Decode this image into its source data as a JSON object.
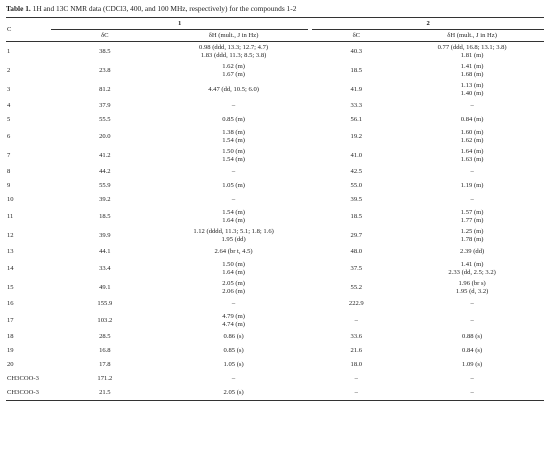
{
  "caption": {
    "label": "Table 1.",
    "text": "1H and 13C NMR data (CDCl3, 400, and 100 MHz, respectively) for the compounds 1-2"
  },
  "headers": {
    "c": "C",
    "compound1": "1",
    "compound2": "2",
    "delta_c": "δC",
    "delta_h": "δH (mult., J in Hz)"
  },
  "rows": [
    {
      "c": "1",
      "c1": "38.5",
      "h1": [
        "0.98 (ddd, 13.3; 12.7; 4.7)",
        "1.83 (ddd, 11.3; 8.5; 3.8)"
      ],
      "c2": "40.3",
      "h2": [
        "0.77 (ddd, 16.8; 13.1; 3.8)",
        "1.81 (m)"
      ]
    },
    {
      "c": "2",
      "c1": "23.8",
      "h1": [
        "1.62 (m)",
        "1.67 (m)"
      ],
      "c2": "18.5",
      "h2": [
        "1.41 (m)",
        "1.68 (m)"
      ]
    },
    {
      "c": "3",
      "c1": "81.2",
      "h1": [
        "4.47 (dd, 10.5; 6.0)"
      ],
      "c2": "41.9",
      "h2": [
        "1.13 (m)",
        "1.40 (m)"
      ]
    },
    {
      "c": "4",
      "c1": "37.9",
      "h1": [
        "–"
      ],
      "c2": "33.3",
      "h2": [
        "–"
      ]
    },
    {
      "c": "5",
      "c1": "55.5",
      "h1": [
        "0.85 (m)"
      ],
      "c2": "56.1",
      "h2": [
        "0.84 (m)"
      ]
    },
    {
      "c": "6",
      "c1": "20.0",
      "h1": [
        "1.38 (m)",
        "1.54 (m)"
      ],
      "c2": "19.2",
      "h2": [
        "1.60 (m)",
        "1.62 (m)"
      ]
    },
    {
      "c": "7",
      "c1": "41.2",
      "h1": [
        "1.50 (m)",
        "1.54 (m)"
      ],
      "c2": "41.0",
      "h2": [
        "1.64 (m)",
        "1.63 (m)"
      ]
    },
    {
      "c": "8",
      "c1": "44.2",
      "h1": [
        "–"
      ],
      "c2": "42.5",
      "h2": [
        "–"
      ]
    },
    {
      "c": "9",
      "c1": "55.9",
      "h1": [
        "1.05 (m)"
      ],
      "c2": "55.0",
      "h2": [
        "1.19 (m)"
      ]
    },
    {
      "c": "10",
      "c1": "39.2",
      "h1": [
        "–"
      ],
      "c2": "39.5",
      "h2": [
        "–"
      ]
    },
    {
      "c": "11",
      "c1": "18.5",
      "h1": [
        "1.54 (m)",
        "1.64 (m)"
      ],
      "c2": "18.5",
      "h2": [
        "1.57 (m)",
        "1.77 (m)"
      ]
    },
    {
      "c": "12",
      "c1": "39.9",
      "h1": [
        "1.12 (dddd, 11.3; 5.1; 1.8; 1.6)",
        "1.95 (dd)"
      ],
      "c2": "29.7",
      "h2": [
        "1.25 (m)",
        "1.78 (m)"
      ]
    },
    {
      "c": "13",
      "c1": "44.1",
      "h1": [
        "2.64 (br t, 4.5)"
      ],
      "c2": "48.0",
      "h2": [
        "2.39 (dd)"
      ]
    },
    {
      "c": "14",
      "c1": "33.4",
      "h1": [
        "1.50 (m)",
        "1.64 (m)"
      ],
      "c2": "37.5",
      "h2": [
        "1.41 (m)",
        "2.33 (dd, 2.5; 3.2)"
      ]
    },
    {
      "c": "15",
      "c1": "49.1",
      "h1": [
        "2.05 (m)",
        "2.06 (m)"
      ],
      "c2": "55.2",
      "h2": [
        "1.96 (br s)",
        "1.95 (d, 3.2)"
      ]
    },
    {
      "c": "16",
      "c1": "155.9",
      "h1": [
        "–"
      ],
      "c2": "222.9",
      "h2": [
        "–"
      ]
    },
    {
      "c": "17",
      "c1": "103.2",
      "h1": [
        "4.79 (m)",
        "4.74 (m)"
      ],
      "c2": "–",
      "h2": [
        "–"
      ]
    },
    {
      "c": "18",
      "c1": "28.5",
      "h1": [
        "0.86 (s)"
      ],
      "c2": "33.6",
      "h2": [
        "0.88 (s)"
      ]
    },
    {
      "c": "19",
      "c1": "16.8",
      "h1": [
        "0.85 (s)"
      ],
      "c2": "21.6",
      "h2": [
        "0.84 (s)"
      ]
    },
    {
      "c": "20",
      "c1": "17.8",
      "h1": [
        "1.05 (s)"
      ],
      "c2": "18.0",
      "h2": [
        "1.09 (s)"
      ]
    },
    {
      "c": "CH3COO-3",
      "c1": "171.2",
      "h1": [
        "–"
      ],
      "c2": "–",
      "h2": [
        "–"
      ]
    },
    {
      "c": "CH3COO-3",
      "c1": "21.5",
      "h1": [
        "2.05 (s)"
      ],
      "c2": "–",
      "h2": [
        "–"
      ]
    }
  ]
}
